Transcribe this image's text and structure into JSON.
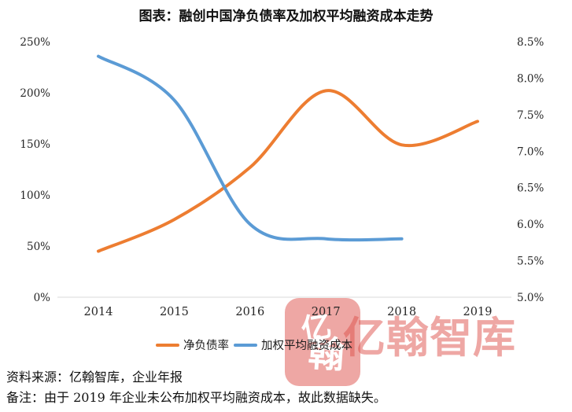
{
  "title": "图表：融创中国净负债率及加权平均融资成本走势",
  "chart_data": {
    "type": "line",
    "x": [
      "2014",
      "2015",
      "2016",
      "2017",
      "2018",
      "2019"
    ],
    "series": [
      {
        "name": "净负债率",
        "axis": "left",
        "color": "#ED7D31",
        "values": [
          45,
          76,
          127,
          202,
          149,
          172
        ]
      },
      {
        "name": "加权平均融资成本",
        "axis": "right",
        "color": "#5B9BD5",
        "values": [
          8.3,
          7.7,
          6.0,
          5.8,
          5.8,
          null
        ]
      }
    ],
    "left_axis": {
      "min": 0,
      "max": 250,
      "tick_labels": [
        "250%",
        "200%",
        "150%",
        "100%",
        "50%",
        "0%"
      ]
    },
    "right_axis": {
      "min": 5.0,
      "max": 8.5,
      "tick_labels": [
        "8.5%",
        "8.0%",
        "7.5%",
        "7.0%",
        "6.5%",
        "6.0%",
        "5.5%",
        "5.0%"
      ]
    },
    "grid": false,
    "legend_position": "bottom",
    "axis_line_color": "#D9D9D9",
    "note": "2019 blue series value missing (not disclosed)"
  },
  "legend": {
    "items": [
      {
        "label": "净负债率",
        "color": "#ED7D31"
      },
      {
        "label": "加权平均融资成本",
        "color": "#5B9BD5"
      }
    ]
  },
  "watermark": {
    "text": "亿翰智库",
    "seal_chars": [
      "亿",
      "翰"
    ],
    "color": "#DE524C"
  },
  "footer": {
    "source": "资料来源：亿翰智库，企业年报",
    "note": "备注：由于 2019 年企业未公布加权平均融资成本，故此数据缺失。"
  }
}
